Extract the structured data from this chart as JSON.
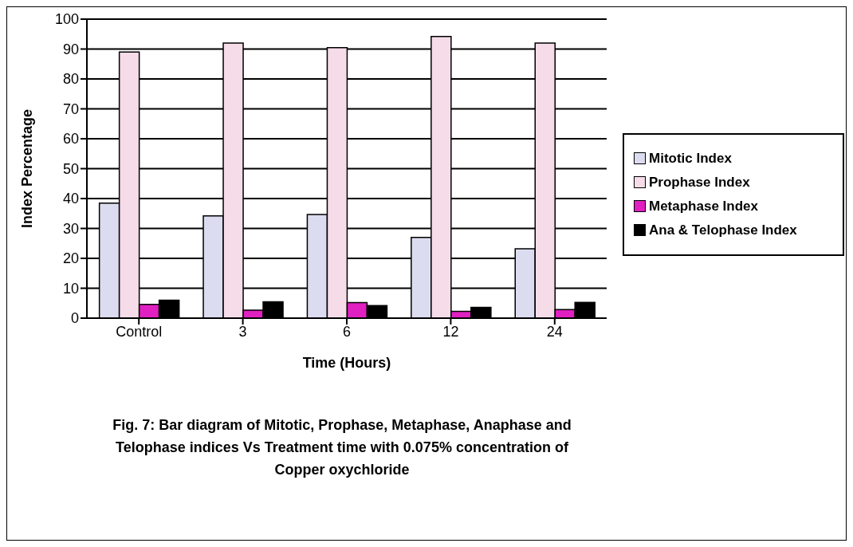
{
  "chart_data": {
    "type": "bar",
    "xlabel": "Time (Hours)",
    "ylabel": "Index Percentage",
    "categories": [
      "Control",
      "3",
      "6",
      "12",
      "24"
    ],
    "series": [
      {
        "name": "Mitotic Index",
        "color": "#dcdcf0",
        "values": [
          38.5,
          34.2,
          34.7,
          27,
          23.2
        ]
      },
      {
        "name": "Prophase Index",
        "color": "#f6dce8",
        "values": [
          89,
          92,
          90.5,
          94.2,
          92
        ]
      },
      {
        "name": "Metaphase Index",
        "color": "#e020c0",
        "values": [
          4.6,
          2.7,
          5.2,
          2.3,
          2.9
        ]
      },
      {
        "name": "Ana & Telophase Index",
        "color": "#000000",
        "values": [
          6,
          5.5,
          4.2,
          3.6,
          5.3
        ]
      }
    ],
    "ylim": [
      0,
      100
    ],
    "yticks": [
      0,
      10,
      20,
      30,
      40,
      50,
      60,
      70,
      80,
      90,
      100
    ],
    "grid": "y",
    "legend": "right",
    "annotations": [
      "Fig. 7: Bar diagram of Mitotic, Prophase, Metaphase, Anaphase and Telophase indices Vs Treatment time with 0.075% concentration of Copper oxychloride"
    ]
  }
}
